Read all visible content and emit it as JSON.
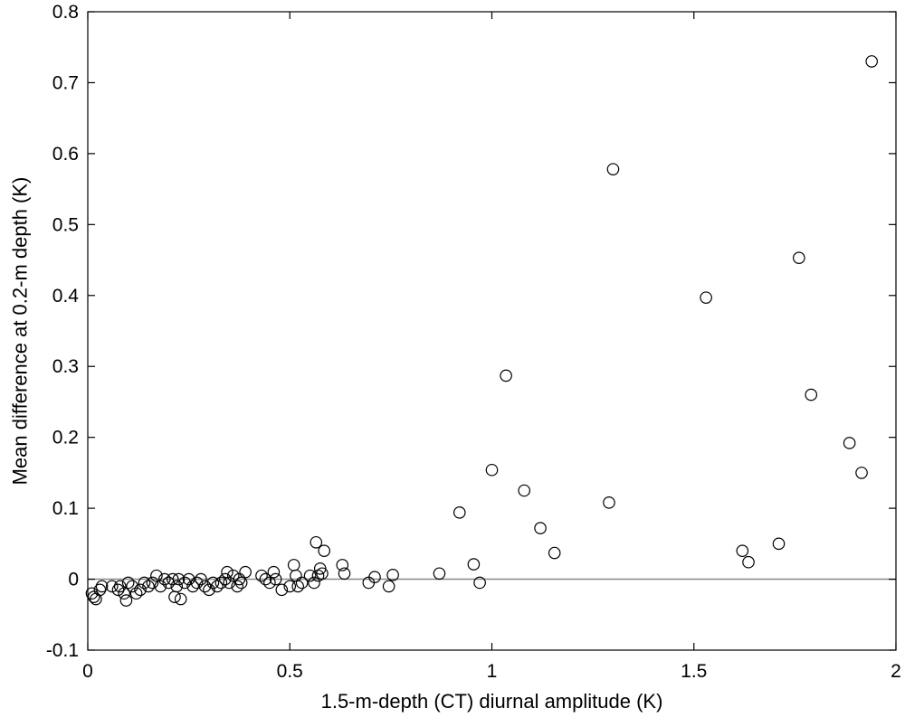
{
  "chart_data": {
    "type": "scatter",
    "title": "",
    "xlabel": "1.5-m-depth (CT) diurnal amplitude (K)",
    "ylabel": "Mean difference at 0.2-m depth (K)",
    "xlim": [
      0,
      2
    ],
    "ylim": [
      -0.1,
      0.8
    ],
    "x_ticks": [
      0,
      0.5,
      1,
      1.5,
      2
    ],
    "x_tick_labels": [
      "0",
      "0.5",
      "1",
      "1.5",
      "2"
    ],
    "y_ticks": [
      -0.1,
      0,
      0.1,
      0.2,
      0.3,
      0.4,
      0.5,
      0.6,
      0.7,
      0.8
    ],
    "y_tick_labels": [
      "-0.1",
      "0",
      "0.1",
      "0.2",
      "0.3",
      "0.4",
      "0.5",
      "0.6",
      "0.7",
      "0.8"
    ],
    "grid": false,
    "reference_line_y": 0,
    "marker": "open-circle",
    "series": [
      {
        "points": [
          [
            0.01,
            -0.02
          ],
          [
            0.015,
            -0.025
          ],
          [
            0.02,
            -0.028
          ],
          [
            0.03,
            -0.015
          ],
          [
            0.035,
            -0.01
          ],
          [
            0.06,
            -0.01
          ],
          [
            0.075,
            -0.015
          ],
          [
            0.08,
            -0.01
          ],
          [
            0.09,
            -0.02
          ],
          [
            0.095,
            -0.03
          ],
          [
            0.1,
            -0.005
          ],
          [
            0.11,
            -0.01
          ],
          [
            0.12,
            -0.02
          ],
          [
            0.13,
            -0.015
          ],
          [
            0.14,
            -0.005
          ],
          [
            0.15,
            -0.01
          ],
          [
            0.16,
            -0.005
          ],
          [
            0.17,
            0.005
          ],
          [
            0.18,
            -0.01
          ],
          [
            0.19,
            0.0
          ],
          [
            0.2,
            -0.005
          ],
          [
            0.21,
            0.0
          ],
          [
            0.215,
            -0.025
          ],
          [
            0.22,
            -0.01
          ],
          [
            0.225,
            0.0
          ],
          [
            0.23,
            -0.028
          ],
          [
            0.24,
            -0.005
          ],
          [
            0.25,
            0.0
          ],
          [
            0.26,
            -0.01
          ],
          [
            0.27,
            -0.005
          ],
          [
            0.28,
            0.0
          ],
          [
            0.29,
            -0.01
          ],
          [
            0.3,
            -0.015
          ],
          [
            0.31,
            -0.005
          ],
          [
            0.32,
            -0.01
          ],
          [
            0.33,
            -0.005
          ],
          [
            0.34,
            0.0
          ],
          [
            0.345,
            0.01
          ],
          [
            0.35,
            -0.005
          ],
          [
            0.36,
            0.005
          ],
          [
            0.37,
            -0.01
          ],
          [
            0.375,
            0.0
          ],
          [
            0.38,
            -0.005
          ],
          [
            0.39,
            0.01
          ],
          [
            0.43,
            0.005
          ],
          [
            0.44,
            0.0
          ],
          [
            0.45,
            -0.005
          ],
          [
            0.46,
            0.01
          ],
          [
            0.465,
            0.0
          ],
          [
            0.48,
            -0.015
          ],
          [
            0.5,
            -0.01
          ],
          [
            0.51,
            0.02
          ],
          [
            0.515,
            0.005
          ],
          [
            0.52,
            -0.01
          ],
          [
            0.53,
            -0.005
          ],
          [
            0.55,
            0.005
          ],
          [
            0.56,
            -0.005
          ],
          [
            0.565,
            0.052
          ],
          [
            0.57,
            0.005
          ],
          [
            0.575,
            0.015
          ],
          [
            0.58,
            0.008
          ],
          [
            0.585,
            0.04
          ],
          [
            0.63,
            0.02
          ],
          [
            0.635,
            0.008
          ],
          [
            0.695,
            -0.005
          ],
          [
            0.71,
            0.003
          ],
          [
            0.745,
            -0.01
          ],
          [
            0.755,
            0.006
          ],
          [
            0.87,
            0.008
          ],
          [
            0.92,
            0.094
          ],
          [
            0.955,
            0.021
          ],
          [
            0.97,
            -0.005
          ],
          [
            1.0,
            0.154
          ],
          [
            1.035,
            0.287
          ],
          [
            1.08,
            0.125
          ],
          [
            1.12,
            0.072
          ],
          [
            1.155,
            0.037
          ],
          [
            1.29,
            0.108
          ],
          [
            1.3,
            0.578
          ],
          [
            1.53,
            0.397
          ],
          [
            1.62,
            0.04
          ],
          [
            1.635,
            0.024
          ],
          [
            1.71,
            0.05
          ],
          [
            1.76,
            0.453
          ],
          [
            1.79,
            0.26
          ],
          [
            1.885,
            0.192
          ],
          [
            1.915,
            0.15
          ],
          [
            1.94,
            0.73
          ]
        ]
      }
    ]
  }
}
